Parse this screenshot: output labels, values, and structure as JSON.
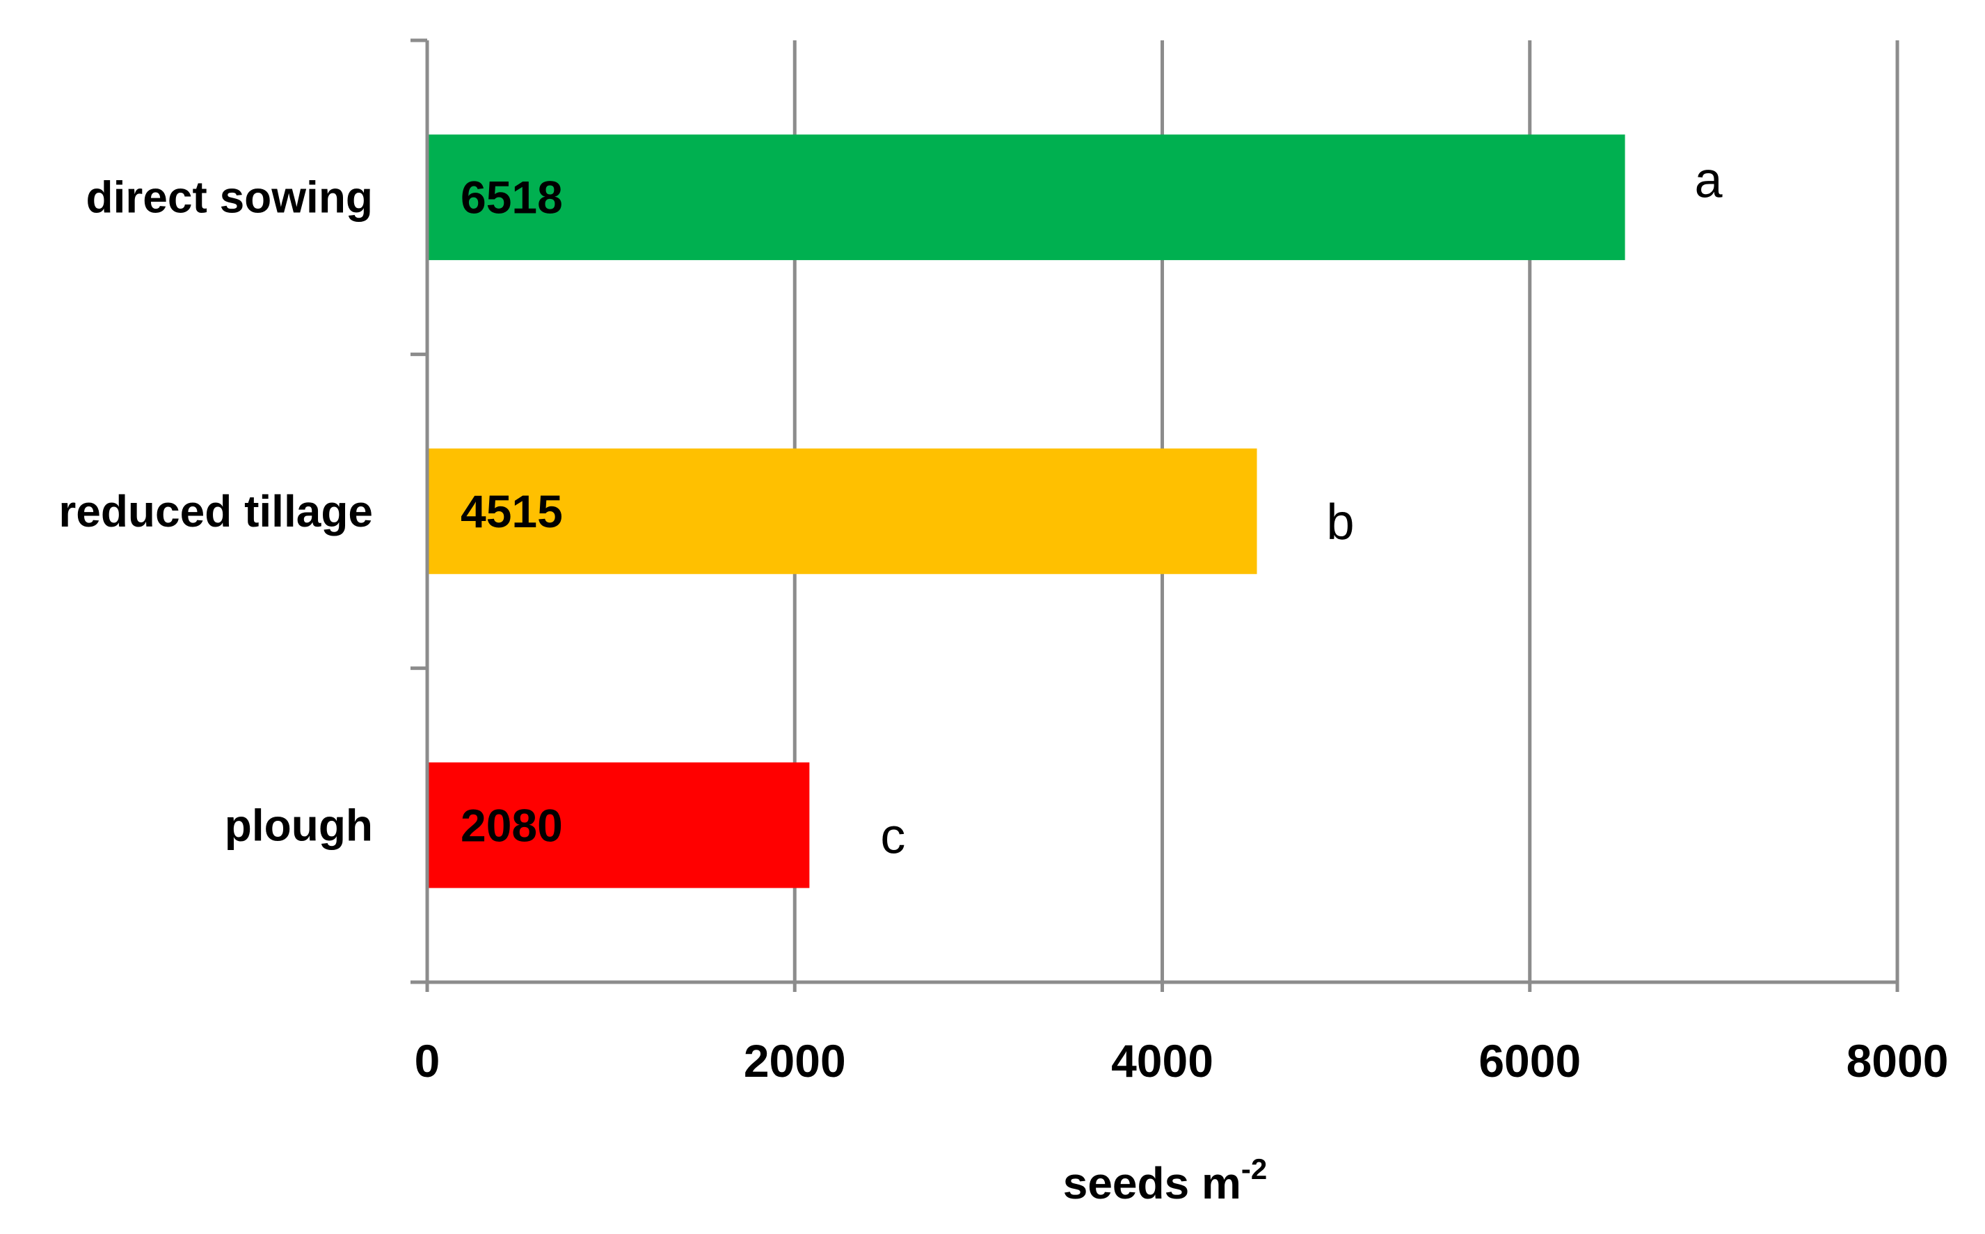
{
  "chart_data": {
    "type": "bar",
    "orientation": "horizontal",
    "categories": [
      "direct sowing",
      "reduced tillage",
      "plough"
    ],
    "values": [
      6518,
      4515,
      2080
    ],
    "data_labels": [
      "6518",
      "4515",
      "2080"
    ],
    "significance_letters": [
      "a",
      "b",
      "c"
    ],
    "colors": [
      "#00B050",
      "#FFC000",
      "#FF0000"
    ],
    "xlabel": "seeds m",
    "xlabel_sup": "-2",
    "xlim": [
      0,
      8000
    ],
    "xticks": [
      0,
      2000,
      4000,
      6000,
      8000
    ],
    "xtick_labels": [
      "0",
      "2000",
      "4000",
      "6000",
      "8000"
    ],
    "grid": "vertical",
    "gridline_color": "#8C8C8C",
    "legend": "none"
  }
}
